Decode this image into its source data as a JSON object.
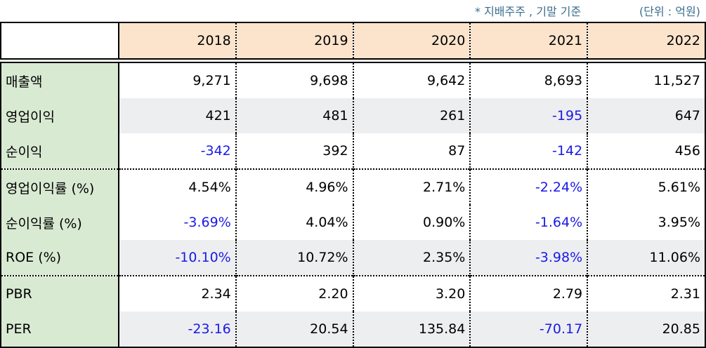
{
  "notes": {
    "basis": "* 지배주주 , 기말 기준",
    "unit": "(단위 : 억원)"
  },
  "columns": [
    "2018",
    "2019",
    "2020",
    "2021",
    "2022"
  ],
  "rows": [
    {
      "label": "매출액",
      "values": [
        "9,271",
        "9,698",
        "9,642",
        "8,693",
        "11,527"
      ]
    },
    {
      "label": "영업이익",
      "values": [
        "421",
        "481",
        "261",
        "-195",
        "647"
      ]
    },
    {
      "label": "순이익",
      "values": [
        "-342",
        "392",
        "87",
        "-142",
        "456"
      ]
    },
    {
      "label": "영업이익률 (%)",
      "values": [
        "4.54%",
        "4.96%",
        "2.71%",
        "-2.24%",
        "5.61%"
      ]
    },
    {
      "label": "순이익률 (%)",
      "values": [
        "-3.69%",
        "4.04%",
        "0.90%",
        "-1.64%",
        "3.95%"
      ]
    },
    {
      "label": "ROE (%)",
      "values": [
        "-10.10%",
        "10.72%",
        "2.35%",
        "-3.98%",
        "11.06%"
      ]
    },
    {
      "label": "PBR",
      "values": [
        "2.34",
        "2.20",
        "3.20",
        "2.79",
        "2.31"
      ]
    },
    {
      "label": "PER",
      "values": [
        "-23.16",
        "20.54",
        "135.84",
        "-70.17",
        "20.85"
      ]
    }
  ],
  "colors": {
    "header_bg": "#fce4cc",
    "label_bg": "#d9ead3",
    "alt_row_bg": "#edeef0",
    "negative_text": "#1a1ae6",
    "note_text": "#3b6e8f"
  }
}
